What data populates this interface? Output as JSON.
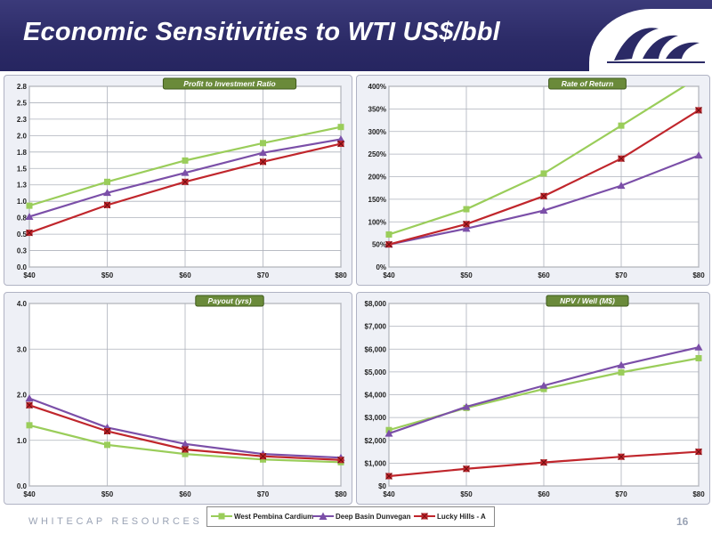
{
  "header": {
    "title": "Economic Sensitivities to WTI US$/bbl"
  },
  "footer": {
    "company": "WHITECAP RESOURCES INC",
    "page_number": "16"
  },
  "legend": {
    "items": [
      {
        "name": "West Pembina Cardium",
        "color": "#9acd5a",
        "marker": "square"
      },
      {
        "name": "Deep Basin Dunvegan",
        "color": "#7b4fa8",
        "marker": "triangle"
      },
      {
        "name": "Lucky Hills - A",
        "color": "#c0262c",
        "marker": "x-square"
      }
    ]
  },
  "colors": {
    "west_pembina": "#9acd5a",
    "deep_basin": "#7b4fa8",
    "lucky_hills": "#c0262c",
    "header_bg": "#2b2a66",
    "title_box": "#6a8a3a"
  },
  "chart_data": [
    {
      "type": "line",
      "title": "Profit to Investment Ratio",
      "categories": [
        "$40",
        "$50",
        "$60",
        "$70",
        "$80"
      ],
      "ylim": [
        0,
        2.8
      ],
      "yticks": [
        "0.0",
        "0.3",
        "0.5",
        "0.8",
        "1.0",
        "1.3",
        "1.5",
        "1.8",
        "2.0",
        "2.3",
        "2.5",
        "2.8"
      ],
      "grid": true,
      "series": [
        {
          "name": "West Pembina Cardium",
          "values": [
            0.95,
            1.32,
            1.65,
            1.92,
            2.17
          ]
        },
        {
          "name": "Deep Basin Dunvegan",
          "values": [
            0.78,
            1.15,
            1.46,
            1.77,
            1.98
          ]
        },
        {
          "name": "Lucky Hills - A",
          "values": [
            0.53,
            0.96,
            1.32,
            1.63,
            1.91
          ]
        }
      ]
    },
    {
      "type": "line",
      "title": "Rate of Return",
      "categories": [
        "$40",
        "$50",
        "$60",
        "$70",
        "$80"
      ],
      "ylim": [
        0,
        400
      ],
      "yticks": [
        "0%",
        "50%",
        "100%",
        "150%",
        "200%",
        "250%",
        "300%",
        "350%",
        "400%"
      ],
      "grid": true,
      "series": [
        {
          "name": "West Pembina Cardium",
          "values": [
            72,
            128,
            207,
            313,
            420
          ]
        },
        {
          "name": "Deep Basin Dunvegan",
          "values": [
            50,
            85,
            125,
            180,
            247
          ]
        },
        {
          "name": "Lucky Hills - A",
          "values": [
            50,
            95,
            157,
            240,
            347
          ]
        }
      ]
    },
    {
      "type": "line",
      "title": "Payout (yrs)",
      "categories": [
        "$40",
        "$50",
        "$60",
        "$70",
        "$80"
      ],
      "ylim": [
        0,
        4
      ],
      "yticks": [
        "0.0",
        "1.0",
        "2.0",
        "3.0",
        "4.0"
      ],
      "grid": true,
      "series": [
        {
          "name": "West Pembina Cardium",
          "values": [
            1.33,
            0.9,
            0.7,
            0.58,
            0.52
          ]
        },
        {
          "name": "Deep Basin Dunvegan",
          "values": [
            1.92,
            1.28,
            0.92,
            0.7,
            0.62
          ]
        },
        {
          "name": "Lucky Hills - A",
          "values": [
            1.77,
            1.2,
            0.8,
            0.65,
            0.57
          ]
        }
      ]
    },
    {
      "type": "line",
      "title": "NPV / Well (M$)",
      "categories": [
        "$40",
        "$50",
        "$60",
        "$70",
        "$80"
      ],
      "ylim": [
        0,
        8000
      ],
      "yticks": [
        "$0",
        "$1,000",
        "$2,000",
        "$3,000",
        "$4,000",
        "$5,000",
        "$6,000",
        "$7,000",
        "$8,000"
      ],
      "grid": true,
      "series": [
        {
          "name": "West Pembina Cardium",
          "values": [
            2450,
            3420,
            4250,
            4980,
            5600
          ]
        },
        {
          "name": "Deep Basin Dunvegan",
          "values": [
            2300,
            3470,
            4400,
            5300,
            6080
          ]
        },
        {
          "name": "Lucky Hills - A",
          "values": [
            430,
            750,
            1030,
            1280,
            1500
          ]
        }
      ]
    }
  ]
}
